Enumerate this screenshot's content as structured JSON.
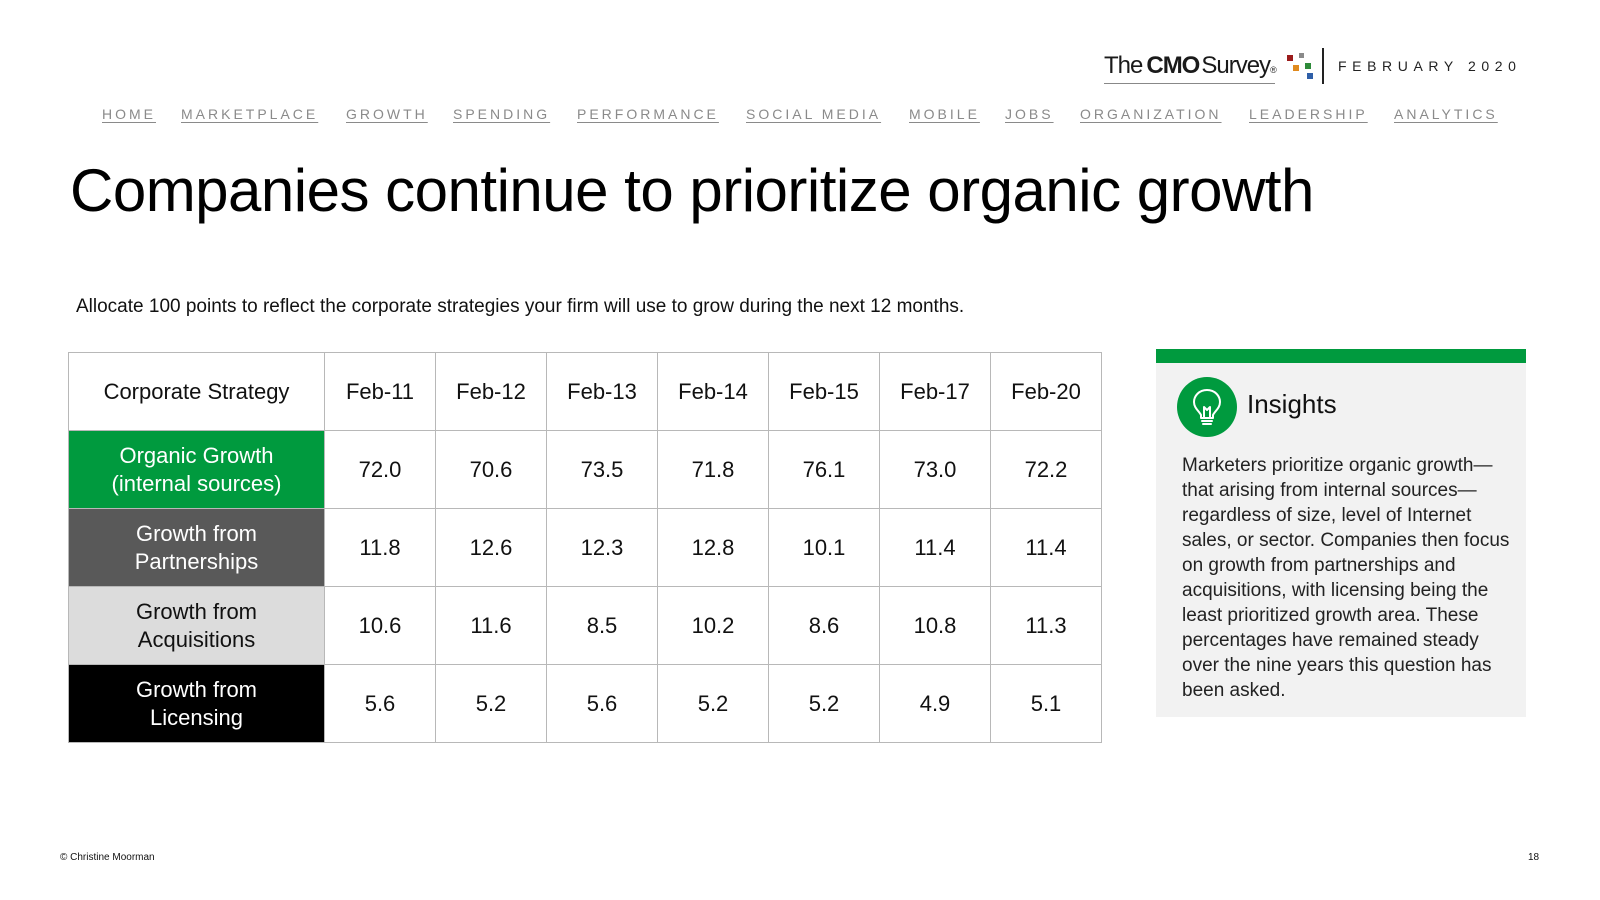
{
  "header": {
    "logo": {
      "the": "The",
      "cmo": "CMO",
      "survey": "Survey",
      "reg": "®"
    },
    "date": "FEBRUARY 2020"
  },
  "nav": {
    "items": [
      "HOME",
      "MARKETPLACE",
      "GROWTH",
      "SPENDING",
      "PERFORMANCE",
      "SOCIAL MEDIA",
      "MOBILE",
      "JOBS",
      "ORGANIZATION",
      "LEADERSHIP",
      "ANALYTICS"
    ]
  },
  "title": "Companies continue to prioritize organic growth",
  "question": "Allocate 100 points to reflect the corporate strategies your firm will use to grow during the next 12 months.",
  "table": {
    "header": [
      "Corporate Strategy",
      "Feb-11",
      "Feb-12",
      "Feb-13",
      "Feb-14",
      "Feb-15",
      "Feb-17",
      "Feb-20"
    ],
    "rows": [
      {
        "label_line1": "Organic Growth",
        "label_line2": "(internal sources)",
        "values": [
          "72.0",
          "70.6",
          "73.5",
          "71.8",
          "76.1",
          "73.0",
          "72.2"
        ]
      },
      {
        "label_line1": "Growth from",
        "label_line2": "Partnerships",
        "values": [
          "11.8",
          "12.6",
          "12.3",
          "12.8",
          "10.1",
          "11.4",
          "11.4"
        ]
      },
      {
        "label_line1": "Growth from",
        "label_line2": "Acquisitions",
        "values": [
          "10.6",
          "11.6",
          "8.5",
          "10.2",
          "8.6",
          "10.8",
          "11.3"
        ]
      },
      {
        "label_line1": "Growth from",
        "label_line2": "Licensing",
        "values": [
          "5.6",
          "5.2",
          "5.6",
          "5.2",
          "5.2",
          "4.9",
          "5.1"
        ]
      }
    ],
    "colors": {
      "organic": "#009a3e",
      "partnerships": "#595959",
      "acquisitions": "#dcdcdc",
      "licensing": "#000000"
    }
  },
  "insights": {
    "heading": "Insights",
    "body": "Marketers prioritize organic growth—that arising from internal sources—regardless of size, level of Internet sales, or sector. Companies then focus on growth from partnerships and acquisitions, with licensing being the least prioritized growth area. These percentages have remained steady over the nine years this question has been asked.",
    "icon": "lightbulb-icon",
    "accent_color": "#009a3e"
  },
  "footer": {
    "copyright": "© Christine Moorman",
    "page_number": "18"
  }
}
